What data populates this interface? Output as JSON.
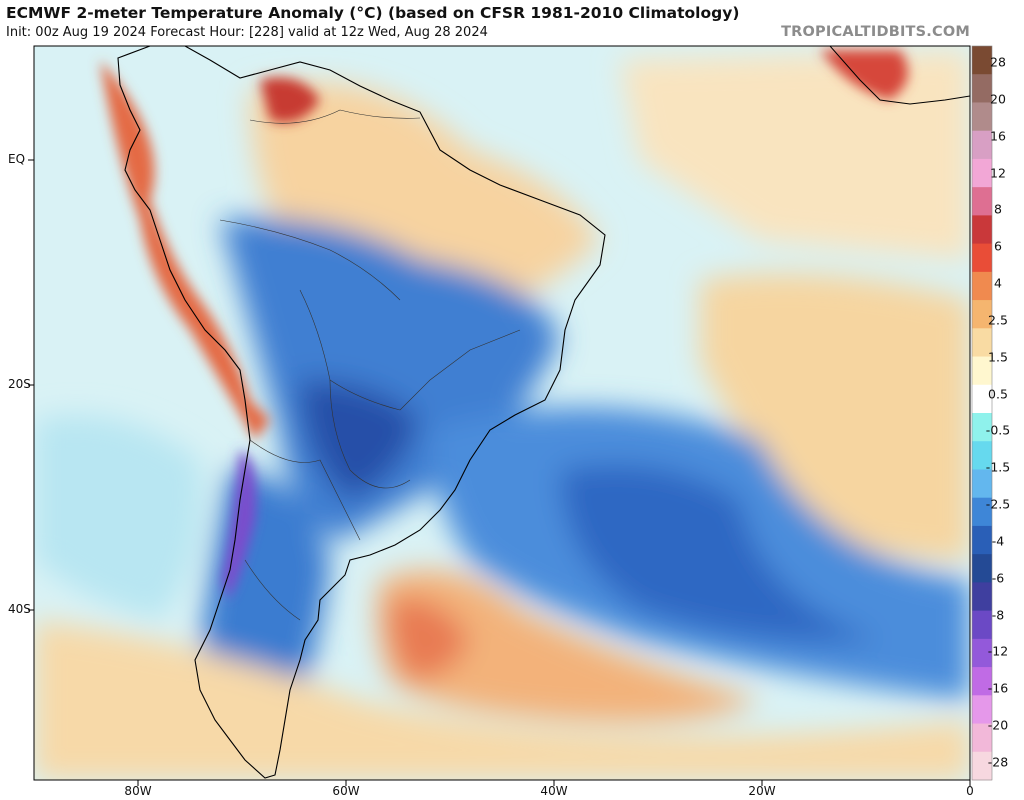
{
  "header": {
    "title": "ECMWF 2-meter Temperature Anomaly (°C) (based on CFSR 1981-2010 Climatology)",
    "subtitle": "Init: 00z Aug 19 2024   Forecast Hour: [228]   valid at 12z Wed, Aug 28 2024",
    "brand": "TROPICALTIDBITS.COM"
  },
  "map": {
    "lat_ticks": [
      {
        "label": "EQ",
        "value": 0
      },
      {
        "label": "20S",
        "value": -20
      },
      {
        "label": "40S",
        "value": -40
      }
    ],
    "lon_ticks": [
      {
        "label": "80W",
        "value": -80
      },
      {
        "label": "60W",
        "value": -60
      },
      {
        "label": "40W",
        "value": -40
      },
      {
        "label": "20W",
        "value": -20
      },
      {
        "label": "0",
        "value": 0
      }
    ],
    "colors": {
      "ocean_base": "#cdeff3",
      "strong_warm": "#d84a33",
      "warm": "#f2a36c",
      "mild_warm": "#f8d7a6",
      "neutral": "#ffffff",
      "mild_cool": "#8fe2ee",
      "cool": "#6fb3ee",
      "strong_cool": "#2f6cc6",
      "very_cold": "#6a3fb8",
      "coastline": "#000000"
    }
  },
  "colorbar": {
    "levels": [
      "28",
      "20",
      "16",
      "12",
      "8",
      "6",
      "4",
      "2.5",
      "1.5",
      "0.5",
      "-0.5",
      "-1.5",
      "-2.5",
      "-4",
      "-6",
      "-8",
      "-12",
      "-16",
      "-20",
      "-28"
    ],
    "colors": [
      "#7a4a32",
      "#946b63",
      "#b08b8b",
      "#d89fc4",
      "#f2a7d6",
      "#de6f92",
      "#c9383a",
      "#e94d37",
      "#f08a4f",
      "#f5b56f",
      "#f9dba3",
      "#fff7cf",
      "#ffffff",
      "#8ff2ec",
      "#66d9ee",
      "#63b7ee",
      "#3e86d7",
      "#2a5fb7",
      "#244a95",
      "#3f3f9f",
      "#6b49c5",
      "#9359da",
      "#c06be5",
      "#e598ea",
      "#f2b8d9",
      "#f7d8e0"
    ]
  }
}
